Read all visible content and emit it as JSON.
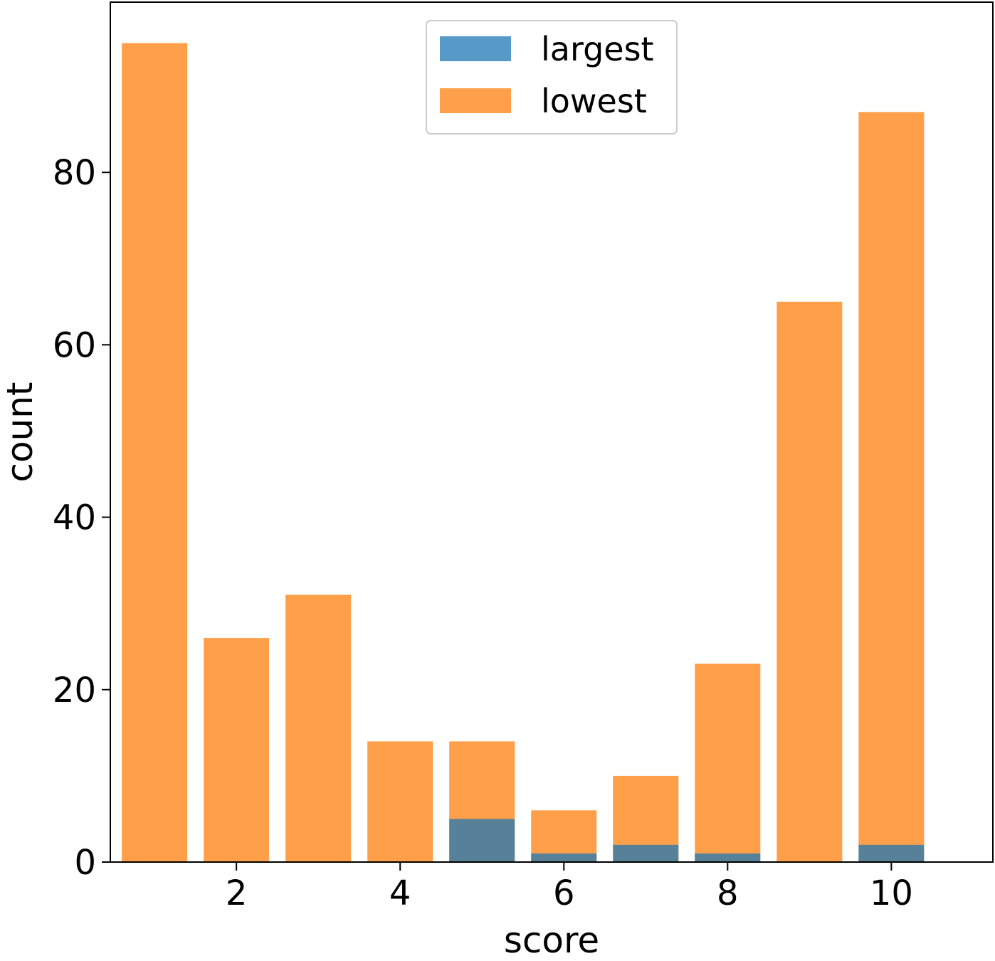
{
  "chart_data": {
    "type": "bar",
    "overlay": true,
    "x": [
      1,
      2,
      3,
      4,
      5,
      6,
      7,
      8,
      9,
      10
    ],
    "series": [
      {
        "name": "largest",
        "color": "#1f77b4",
        "values": [
          0,
          0,
          0,
          0,
          5,
          1,
          2,
          1,
          0,
          2
        ]
      },
      {
        "name": "lowest",
        "color": "#ff7f0e",
        "values": [
          95,
          26,
          31,
          14,
          14,
          6,
          10,
          23,
          65,
          87
        ]
      }
    ],
    "xlabel": "score",
    "ylabel": "count",
    "xticks": [
      "2",
      "4",
      "6",
      "8",
      "10"
    ],
    "xtick_values": [
      2,
      4,
      6,
      8,
      10
    ],
    "yticks": [
      "0",
      "20",
      "40",
      "60",
      "80"
    ],
    "ytick_values": [
      0,
      20,
      40,
      60,
      80
    ],
    "xlim": [
      0.46,
      11.24
    ],
    "ylim": [
      0,
      99.75
    ],
    "legend": [
      "largest",
      "lowest"
    ],
    "legend_position": "top-center",
    "grid": false
  }
}
